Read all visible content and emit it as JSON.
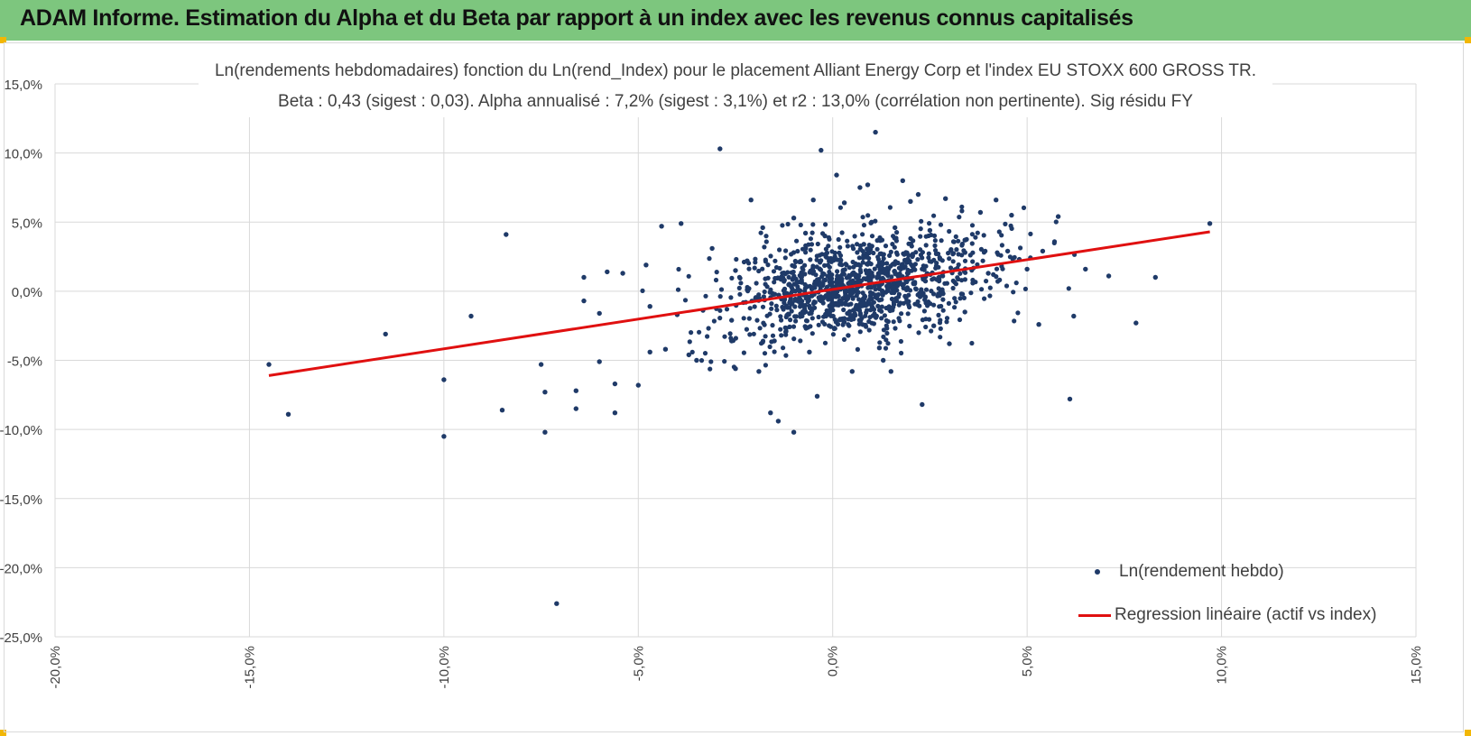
{
  "header": {
    "title": "ADAM Informe. Estimation du Alpha et du Beta par rapport à un index avec les revenus connus capitalisés",
    "color": "#7dc67e"
  },
  "chart_data": {
    "type": "scatter",
    "title": "Ln(rendements hebdomadaires) fonction du Ln(rend_Index) pour le placement Alliant Energy Corp et l'index EU STOXX 600 GROSS TR.",
    "subtitle": "Beta : 0,43 (sigest : 0,03). Alpha annualisé : 7,2% (sigest : 3,1%) et r2 : 13,0% (corrélation non pertinente). Sig résidu FY",
    "xlabel": "",
    "ylabel": "",
    "xlim": [
      -20,
      15
    ],
    "ylim": [
      -25,
      15
    ],
    "x_ticks": [
      "-20,0%",
      "-15,0%",
      "-10,0%",
      "-5,0%",
      "0,0%",
      "5,0%",
      "10,0%",
      "15,0%"
    ],
    "y_ticks": [
      "15,0%",
      "10,0%",
      "5,0%",
      "0,0%",
      "-5,0%",
      "-10,0%",
      "-15,0%",
      "-20,0%",
      "-25,0%"
    ],
    "grid": true,
    "legend_position": "bottom-right",
    "series": [
      {
        "name": "Ln(rendement hebdo)",
        "type": "scatter",
        "color": "#1f3a68",
        "points": [
          [
            -14.5,
            -5.3
          ],
          [
            -14.0,
            -8.9
          ],
          [
            -11.5,
            -3.1
          ],
          [
            -10.0,
            -6.4
          ],
          [
            -10.0,
            -10.5
          ],
          [
            -9.3,
            -1.8
          ],
          [
            -8.4,
            4.1
          ],
          [
            -8.5,
            -8.6
          ],
          [
            -7.1,
            -22.6
          ],
          [
            -7.5,
            -5.3
          ],
          [
            -7.4,
            -7.3
          ],
          [
            -7.4,
            -10.2
          ],
          [
            -6.6,
            -7.2
          ],
          [
            -6.6,
            -8.5
          ],
          [
            -6.4,
            -0.7
          ],
          [
            -6.4,
            1.0
          ],
          [
            -6.0,
            -5.1
          ],
          [
            -6.0,
            -1.6
          ],
          [
            -5.8,
            1.4
          ],
          [
            -5.6,
            -6.7
          ],
          [
            -5.6,
            -8.8
          ],
          [
            -5.4,
            1.3
          ],
          [
            -5.0,
            -6.8
          ],
          [
            -4.8,
            1.9
          ],
          [
            -4.7,
            -4.4
          ],
          [
            -4.7,
            -1.1
          ],
          [
            -4.4,
            4.7
          ],
          [
            -4.3,
            -4.2
          ],
          [
            -4.0,
            -1.7
          ],
          [
            -3.9,
            4.9
          ],
          [
            -3.7,
            -4.6
          ],
          [
            -3.5,
            -5.0
          ],
          [
            -3.1,
            3.1
          ],
          [
            -2.9,
            10.3
          ],
          [
            -2.6,
            -2.1
          ],
          [
            -2.6,
            -3.6
          ],
          [
            -2.5,
            -5.6
          ],
          [
            -2.5,
            1.5
          ],
          [
            -2.1,
            6.6
          ],
          [
            -1.9,
            -5.8
          ],
          [
            -1.8,
            4.6
          ],
          [
            -1.6,
            -8.8
          ],
          [
            -1.5,
            -3.6
          ],
          [
            -1.4,
            -9.4
          ],
          [
            -1.2,
            -2.9
          ],
          [
            -1.0,
            5.3
          ],
          [
            -1.0,
            -10.2
          ],
          [
            -0.8,
            0.8
          ],
          [
            -0.7,
            4.2
          ],
          [
            -0.6,
            -4.4
          ],
          [
            -0.5,
            6.6
          ],
          [
            -0.4,
            -7.6
          ],
          [
            -0.3,
            10.2
          ],
          [
            -0.2,
            4.0
          ],
          [
            0.1,
            8.4
          ],
          [
            0.2,
            2.2
          ],
          [
            0.3,
            6.4
          ],
          [
            0.4,
            -3.2
          ],
          [
            0.5,
            -5.8
          ],
          [
            0.7,
            7.5
          ],
          [
            0.8,
            3.4
          ],
          [
            0.9,
            7.7
          ],
          [
            1.0,
            5.0
          ],
          [
            1.1,
            11.5
          ],
          [
            1.2,
            -4.1
          ],
          [
            1.3,
            -5.0
          ],
          [
            1.5,
            -5.8
          ],
          [
            1.6,
            4.6
          ],
          [
            1.8,
            8.0
          ],
          [
            2.0,
            6.5
          ],
          [
            2.2,
            7.0
          ],
          [
            2.3,
            -8.2
          ],
          [
            2.5,
            4.4
          ],
          [
            2.9,
            6.7
          ],
          [
            3.0,
            -3.8
          ],
          [
            3.4,
            3.7
          ],
          [
            3.8,
            5.7
          ],
          [
            4.0,
            1.3
          ],
          [
            4.2,
            6.6
          ],
          [
            4.5,
            2.9
          ],
          [
            4.6,
            5.5
          ],
          [
            4.8,
            2.3
          ],
          [
            5.0,
            1.6
          ],
          [
            5.3,
            -2.4
          ],
          [
            5.4,
            2.9
          ],
          [
            5.8,
            5.4
          ],
          [
            6.1,
            -7.8
          ],
          [
            6.2,
            -1.8
          ],
          [
            6.5,
            1.6
          ],
          [
            7.1,
            1.1
          ],
          [
            7.8,
            -2.3
          ],
          [
            8.3,
            1.0
          ],
          [
            9.7,
            4.9
          ],
          [
            3.4,
            -1.5
          ],
          [
            2.6,
            -2.5
          ],
          [
            -2.2,
            2.2
          ]
        ]
      },
      {
        "name": "Regression linéaire (actif vs index)",
        "type": "line",
        "color": "#e01010",
        "x": [
          -14.5,
          9.7
        ],
        "y": [
          -6.1,
          4.3
        ]
      }
    ],
    "regression": {
      "slope": 0.43,
      "intercept": 0.14
    },
    "cluster": {
      "count": 1150,
      "x_sd": 1.75,
      "y_sd": 2.4,
      "noise_sd": 2.2,
      "seed": 20240607
    }
  }
}
